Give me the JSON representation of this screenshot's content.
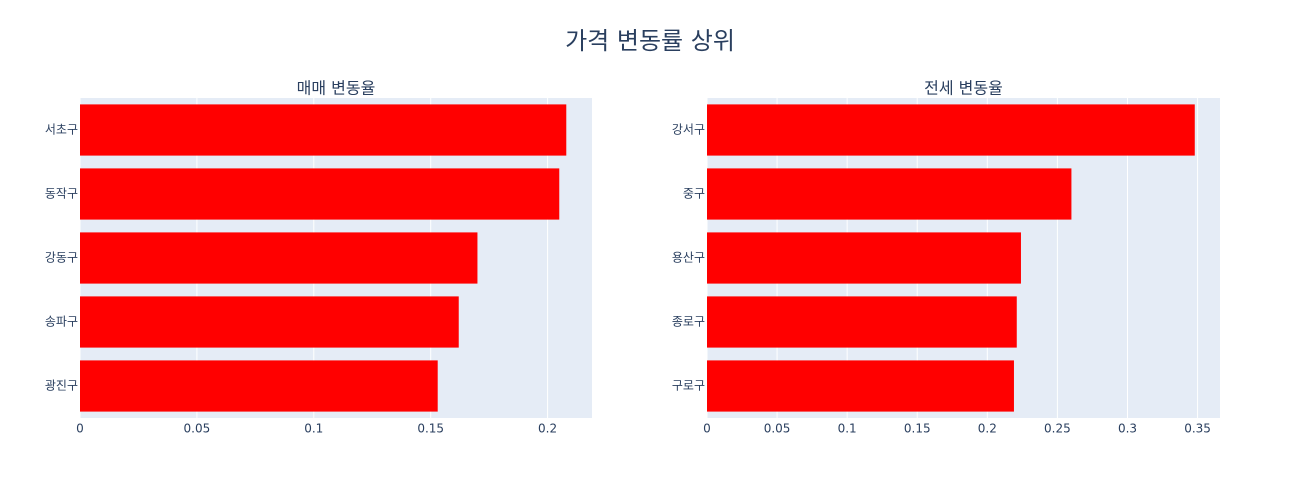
{
  "title": "가격 변동률 상위",
  "chart_data": [
    {
      "type": "hbar",
      "title": "매매 변동율",
      "color": "#ff0000",
      "grid": true,
      "categories": [
        "서초구",
        "동작구",
        "강동구",
        "송파구",
        "광진구"
      ],
      "values": [
        0.208,
        0.205,
        0.17,
        0.162,
        0.153
      ],
      "xlim": [
        0,
        0.219
      ],
      "xticks": [
        0,
        0.05,
        0.1,
        0.15,
        0.2
      ]
    },
    {
      "type": "hbar",
      "title": "전세 변동율",
      "color": "#ff0000",
      "grid": true,
      "categories": [
        "강서구",
        "중구",
        "용산구",
        "종로구",
        "구로구"
      ],
      "values": [
        0.348,
        0.26,
        0.224,
        0.221,
        0.219
      ],
      "xlim": [
        0,
        0.366
      ],
      "xticks": [
        0,
        0.05,
        0.1,
        0.15,
        0.2,
        0.25,
        0.3,
        0.35
      ]
    }
  ]
}
